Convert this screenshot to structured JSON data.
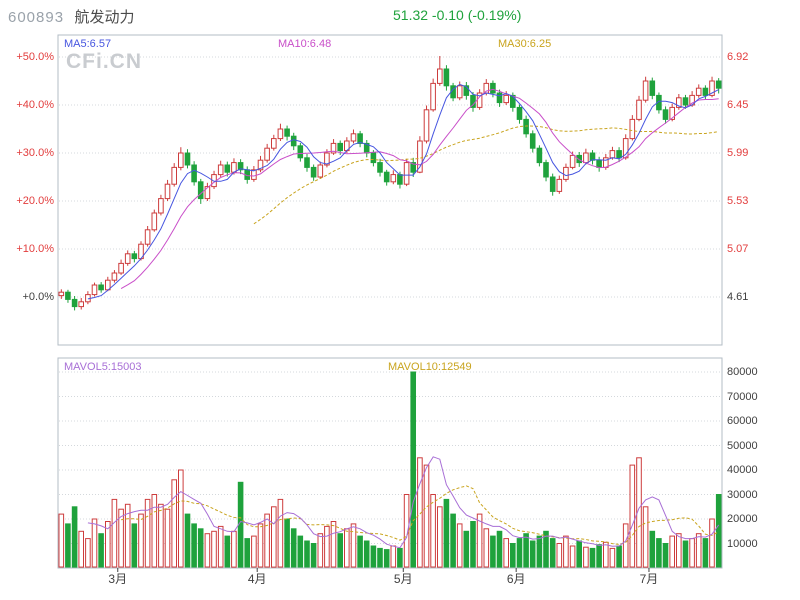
{
  "header": {
    "stock_code": "600893",
    "stock_name": "航发动力",
    "quote": "51.32  -0.10  (-0.19%)"
  },
  "watermark": "CFi.CN",
  "main_chart": {
    "ma_labels": [
      {
        "label": "MA5:6.57",
        "color": "#4756e0"
      },
      {
        "label": "MA10:6.48",
        "color": "#c94fc9"
      },
      {
        "label": "MA30:6.25",
        "color": "#c9a41e"
      }
    ],
    "left_axis": [
      "+50.0%",
      "+40.0%",
      "+30.0%",
      "+20.0%",
      "+10.0%",
      "+0.0%"
    ],
    "right_axis": [
      "6.92",
      "6.45",
      "5.99",
      "5.53",
      "5.07",
      "4.61"
    ]
  },
  "volume_chart": {
    "mavol_labels": [
      {
        "label": "MAVOL5:15003",
        "color": "#a86fd6"
      },
      {
        "label": "MAVOL10:12549",
        "color": "#c9a41e"
      }
    ],
    "right_axis": [
      "80000",
      "70000",
      "60000",
      "50000",
      "40000",
      "30000",
      "20000",
      "10000"
    ]
  },
  "colors": {
    "up": "#cd3c3c",
    "down": "#1fa23c",
    "ma5": "#4756e0",
    "ma10": "#c94fc9",
    "ma30": "#c9a41e",
    "mavol5": "#a86fd6",
    "mavol10": "#c9a41e",
    "axis_red": "#e23d3d",
    "axis_dark": "#404040",
    "grid": "#d4d8dc",
    "border": "#b3bcc6",
    "code": "#9aa2aa",
    "name": "#4a4a4a",
    "quote": "#1fa23c",
    "watermark": "#c9ccd0"
  },
  "chart_data": {
    "type": "candlestick",
    "symbol": "600893",
    "name": "航发动力",
    "left_axis_pct": [
      50,
      40,
      30,
      20,
      10,
      0
    ],
    "right_axis_price": [
      6.92,
      6.45,
      5.99,
      5.53,
      5.07,
      4.61
    ],
    "price_baseline": 4.61,
    "ylim_pct": [
      -10.4,
      54.6
    ],
    "volume_axis": [
      80000,
      70000,
      60000,
      50000,
      40000,
      30000,
      20000,
      10000
    ],
    "volume_ylim": [
      0,
      85700
    ],
    "ma_periods": [
      5,
      10,
      30
    ],
    "mavol_periods": [
      5,
      10
    ],
    "ma_last_values": {
      "MA5": 6.57,
      "MA10": 6.48,
      "MA30": 6.25
    },
    "mavol_last_values": {
      "MAVOL5": 15003,
      "MAVOL10": 12549
    },
    "months": [
      {
        "label": "3月",
        "start_index": 9
      },
      {
        "label": "4月",
        "start_index": 30
      },
      {
        "label": "5月",
        "start_index": 52
      },
      {
        "label": "6月",
        "start_index": 69
      },
      {
        "label": "7月",
        "start_index": 89
      }
    ],
    "candles_pct": [
      [
        0.3,
        1.6,
        -0.4,
        1.0
      ],
      [
        1.0,
        1.5,
        -1.2,
        -0.5
      ],
      [
        -0.5,
        0.2,
        -2.8,
        -2.0
      ],
      [
        -2.0,
        -0.2,
        -2.6,
        -1.0
      ],
      [
        -1.0,
        1.2,
        -1.5,
        0.5
      ],
      [
        0.5,
        3.0,
        0.1,
        2.5
      ],
      [
        2.5,
        3.1,
        0.9,
        1.5
      ],
      [
        1.5,
        4.2,
        1.2,
        3.5
      ],
      [
        3.5,
        5.6,
        3.0,
        5.0
      ],
      [
        5.0,
        7.8,
        4.6,
        7.0
      ],
      [
        7.0,
        9.7,
        6.5,
        9.0
      ],
      [
        9.0,
        9.6,
        7.2,
        8.0
      ],
      [
        8.0,
        11.6,
        7.6,
        11.0
      ],
      [
        11.0,
        14.8,
        10.5,
        14.0
      ],
      [
        14.0,
        18.2,
        13.6,
        17.5
      ],
      [
        17.5,
        21.3,
        17.0,
        20.5
      ],
      [
        20.5,
        24.4,
        20.0,
        23.5
      ],
      [
        23.5,
        27.9,
        23.0,
        27.0
      ],
      [
        27.0,
        31.2,
        26.4,
        30.0
      ],
      [
        30.0,
        30.8,
        26.8,
        27.5
      ],
      [
        27.5,
        28.3,
        23.2,
        24.0
      ],
      [
        24.0,
        24.6,
        19.4,
        20.5
      ],
      [
        20.5,
        23.8,
        20.0,
        23.0
      ],
      [
        23.0,
        26.3,
        22.5,
        25.5
      ],
      [
        25.5,
        28.4,
        25.0,
        27.5
      ],
      [
        27.5,
        28.2,
        25.1,
        26.0
      ],
      [
        26.0,
        28.9,
        25.5,
        28.0
      ],
      [
        28.0,
        28.7,
        25.6,
        26.5
      ],
      [
        26.5,
        27.2,
        23.6,
        24.5
      ],
      [
        24.5,
        27.3,
        24.0,
        26.5
      ],
      [
        26.5,
        29.4,
        26.0,
        28.5
      ],
      [
        28.5,
        31.9,
        28.0,
        31.0
      ],
      [
        31.0,
        33.8,
        30.5,
        33.0
      ],
      [
        33.0,
        36.1,
        32.5,
        35.0
      ],
      [
        35.0,
        35.7,
        32.6,
        33.5
      ],
      [
        33.5,
        34.2,
        30.6,
        31.5
      ],
      [
        31.5,
        32.1,
        28.2,
        29.0
      ],
      [
        29.0,
        29.8,
        26.1,
        27.0
      ],
      [
        27.0,
        27.6,
        24.2,
        25.0
      ],
      [
        25.0,
        28.2,
        24.6,
        27.5
      ],
      [
        27.5,
        30.8,
        27.0,
        30.0
      ],
      [
        30.0,
        32.9,
        29.6,
        32.0
      ],
      [
        32.0,
        32.6,
        29.6,
        30.5
      ],
      [
        30.5,
        33.3,
        30.0,
        32.5
      ],
      [
        32.5,
        34.9,
        32.0,
        34.0
      ],
      [
        34.0,
        34.6,
        31.2,
        32.0
      ],
      [
        32.0,
        32.7,
        29.1,
        30.0
      ],
      [
        30.0,
        30.6,
        27.2,
        28.0
      ],
      [
        28.0,
        28.8,
        25.1,
        26.0
      ],
      [
        26.0,
        26.5,
        23.2,
        24.0
      ],
      [
        24.0,
        26.4,
        23.5,
        25.5
      ],
      [
        25.5,
        26.1,
        22.6,
        23.5
      ],
      [
        23.5,
        28.8,
        23.1,
        28.0
      ],
      [
        28.0,
        29.0,
        25.0,
        26.0
      ],
      [
        26.0,
        33.5,
        25.8,
        32.5
      ],
      [
        32.5,
        39.9,
        32.0,
        39.0
      ],
      [
        39.0,
        45.5,
        38.6,
        44.5
      ],
      [
        44.5,
        50.2,
        44.0,
        47.5
      ],
      [
        47.5,
        48.3,
        43.0,
        44.0
      ],
      [
        44.0,
        44.6,
        40.8,
        41.5
      ],
      [
        41.5,
        44.9,
        41.0,
        44.0
      ],
      [
        44.0,
        44.8,
        41.1,
        42.0
      ],
      [
        42.0,
        42.7,
        38.6,
        39.5
      ],
      [
        39.5,
        43.3,
        39.0,
        42.5
      ],
      [
        42.5,
        45.4,
        42.0,
        44.5
      ],
      [
        44.5,
        45.1,
        41.6,
        42.5
      ],
      [
        42.5,
        43.2,
        39.6,
        40.5
      ],
      [
        40.5,
        42.9,
        40.0,
        42.0
      ],
      [
        42.0,
        42.6,
        38.6,
        39.5
      ],
      [
        39.5,
        40.1,
        36.1,
        37.0
      ],
      [
        37.0,
        37.8,
        33.2,
        34.0
      ],
      [
        34.0,
        34.7,
        30.1,
        31.0
      ],
      [
        31.0,
        31.6,
        27.2,
        28.0
      ],
      [
        28.0,
        28.6,
        24.1,
        25.0
      ],
      [
        25.0,
        25.7,
        21.1,
        22.0
      ],
      [
        22.0,
        25.3,
        21.5,
        24.5
      ],
      [
        24.5,
        27.8,
        24.0,
        27.0
      ],
      [
        27.0,
        30.3,
        26.6,
        29.5
      ],
      [
        29.5,
        30.2,
        27.1,
        28.0
      ],
      [
        28.0,
        30.9,
        27.6,
        30.0
      ],
      [
        30.0,
        30.6,
        27.6,
        28.5
      ],
      [
        28.5,
        29.2,
        26.1,
        27.0
      ],
      [
        27.0,
        29.8,
        26.5,
        29.0
      ],
      [
        29.0,
        31.3,
        28.6,
        30.5
      ],
      [
        30.5,
        31.2,
        28.1,
        29.0
      ],
      [
        29.0,
        33.9,
        28.6,
        33.0
      ],
      [
        33.0,
        37.9,
        32.6,
        37.0
      ],
      [
        37.0,
        41.9,
        36.6,
        41.0
      ],
      [
        41.0,
        45.9,
        40.5,
        45.0
      ],
      [
        45.0,
        45.7,
        41.2,
        42.0
      ],
      [
        42.0,
        42.6,
        38.2,
        39.0
      ],
      [
        39.0,
        39.7,
        36.1,
        37.0
      ],
      [
        37.0,
        40.3,
        36.6,
        39.5
      ],
      [
        39.5,
        42.3,
        39.0,
        41.5
      ],
      [
        41.5,
        42.1,
        39.2,
        40.0
      ],
      [
        40.0,
        42.9,
        39.6,
        42.0
      ],
      [
        42.0,
        44.3,
        41.5,
        43.5
      ],
      [
        43.5,
        44.1,
        41.2,
        42.0
      ],
      [
        42.0,
        45.9,
        41.6,
        45.0
      ],
      [
        45.0,
        45.6,
        42.4,
        43.5
      ]
    ],
    "volumes": [
      22000,
      18000,
      25000,
      15000,
      12000,
      20000,
      14000,
      19000,
      28000,
      24000,
      26000,
      18000,
      22000,
      28000,
      30000,
      26000,
      24000,
      36000,
      40000,
      22000,
      18000,
      16000,
      14000,
      15000,
      17000,
      13000,
      15000,
      35000,
      12000,
      13000,
      18000,
      22000,
      25000,
      28000,
      20000,
      16000,
      13000,
      11000,
      10000,
      14000,
      17000,
      19000,
      14000,
      16000,
      18000,
      13000,
      11000,
      9000,
      8000,
      7500,
      9000,
      8000,
      30000,
      80000,
      45000,
      42000,
      30000,
      25000,
      28000,
      22000,
      18000,
      15000,
      19000,
      22000,
      16000,
      13000,
      15000,
      12000,
      10000,
      12000,
      14000,
      11000,
      13000,
      15000,
      12000,
      10000,
      13000,
      9000,
      11000,
      8500,
      8000,
      9500,
      10500,
      8000,
      9000,
      18000,
      42000,
      45000,
      25000,
      15000,
      12000,
      10000,
      13000,
      14000,
      11000,
      12000,
      14000,
      12000,
      20000,
      30000
    ]
  }
}
